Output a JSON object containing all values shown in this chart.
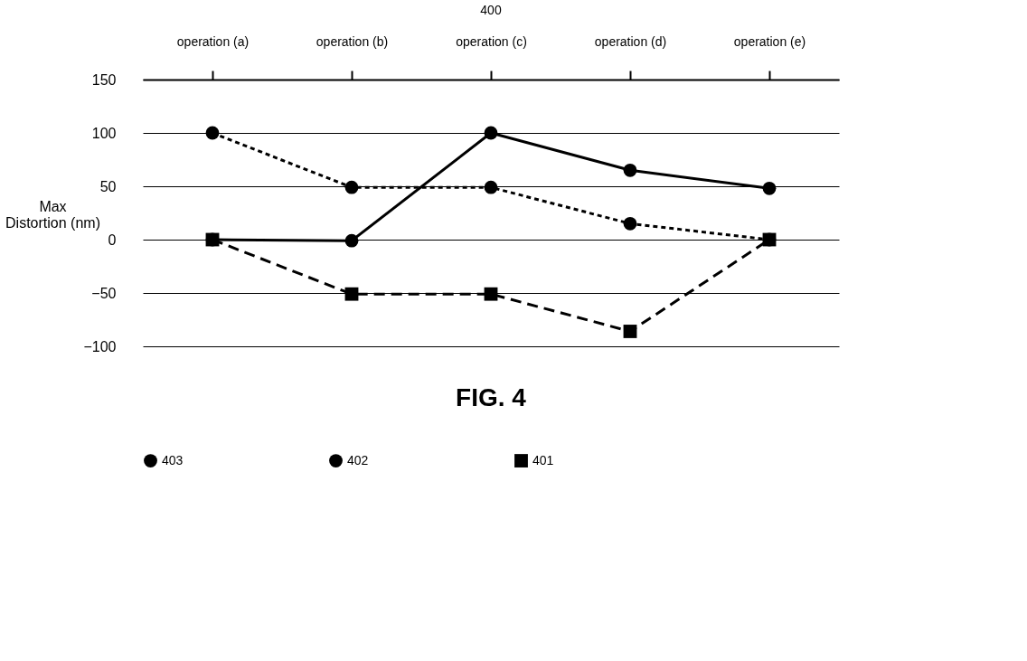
{
  "chart_data": {
    "type": "line",
    "title": "400",
    "ylabel": "Max Distortion (nm)",
    "categories": [
      "operation (a)",
      "operation (b)",
      "operation (c)",
      "operation (d)",
      "operation (e)"
    ],
    "series": [
      {
        "name": "403",
        "color": "#000000",
        "values": [
          0,
          -1,
          100,
          65,
          48
        ],
        "marker": "circle",
        "line_style": "solid"
      },
      {
        "name": "402",
        "color": "#000000",
        "values": [
          100,
          49,
          49,
          15,
          0
        ],
        "marker": "circle",
        "line_style": "dotted"
      },
      {
        "name": "401",
        "color": "#000000",
        "values": [
          0,
          -51,
          -51,
          -86,
          0
        ],
        "marker": "square",
        "line_style": "dashed"
      }
    ],
    "ylim": [
      -100,
      150
    ],
    "yticks": [
      -100,
      -50,
      0,
      50,
      100,
      150
    ],
    "grid": "y",
    "legend": "bottom",
    "annotations": [
      "FIG. 4"
    ]
  }
}
